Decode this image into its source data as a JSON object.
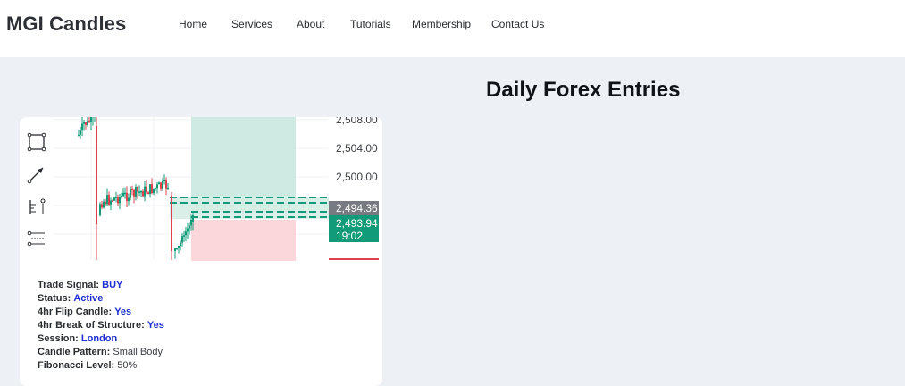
{
  "header": {
    "brand": "MGI Candles",
    "nav": [
      "Home",
      "Services",
      "About",
      "Tutorials",
      "Membership",
      "Contact Us"
    ]
  },
  "main": {
    "title": "Daily Forex Entries"
  },
  "chart": {
    "price_ticks": [
      "2,508.00",
      "2,504.00",
      "2,500.00"
    ],
    "badge_price_1": "2,494.36",
    "badge_price_2": "2,493.94",
    "badge_time": "19:02",
    "colors": {
      "up": "#129b78",
      "down": "#e0414f",
      "profit_zone": "#cfeae2",
      "loss_zone": "#fbd7db"
    },
    "toolbar_icons": [
      "rectangle-icon",
      "trend-line-icon",
      "measure-icon",
      "fibonacci-icon"
    ]
  },
  "trade": {
    "signal_label": "Trade Signal:",
    "signal_value": "BUY",
    "status_label": "Status:",
    "status_value": "Active",
    "flip_label": "4hr Flip Candle:",
    "flip_value": "Yes",
    "bos_label": "4hr Break of Structure:",
    "bos_value": "Yes",
    "session_label": "Session:",
    "session_value": "London",
    "pattern_label": "Candle Pattern:",
    "pattern_value": "Small Body",
    "fib_label": "Fibonacci Level:",
    "fib_value": "50%"
  }
}
